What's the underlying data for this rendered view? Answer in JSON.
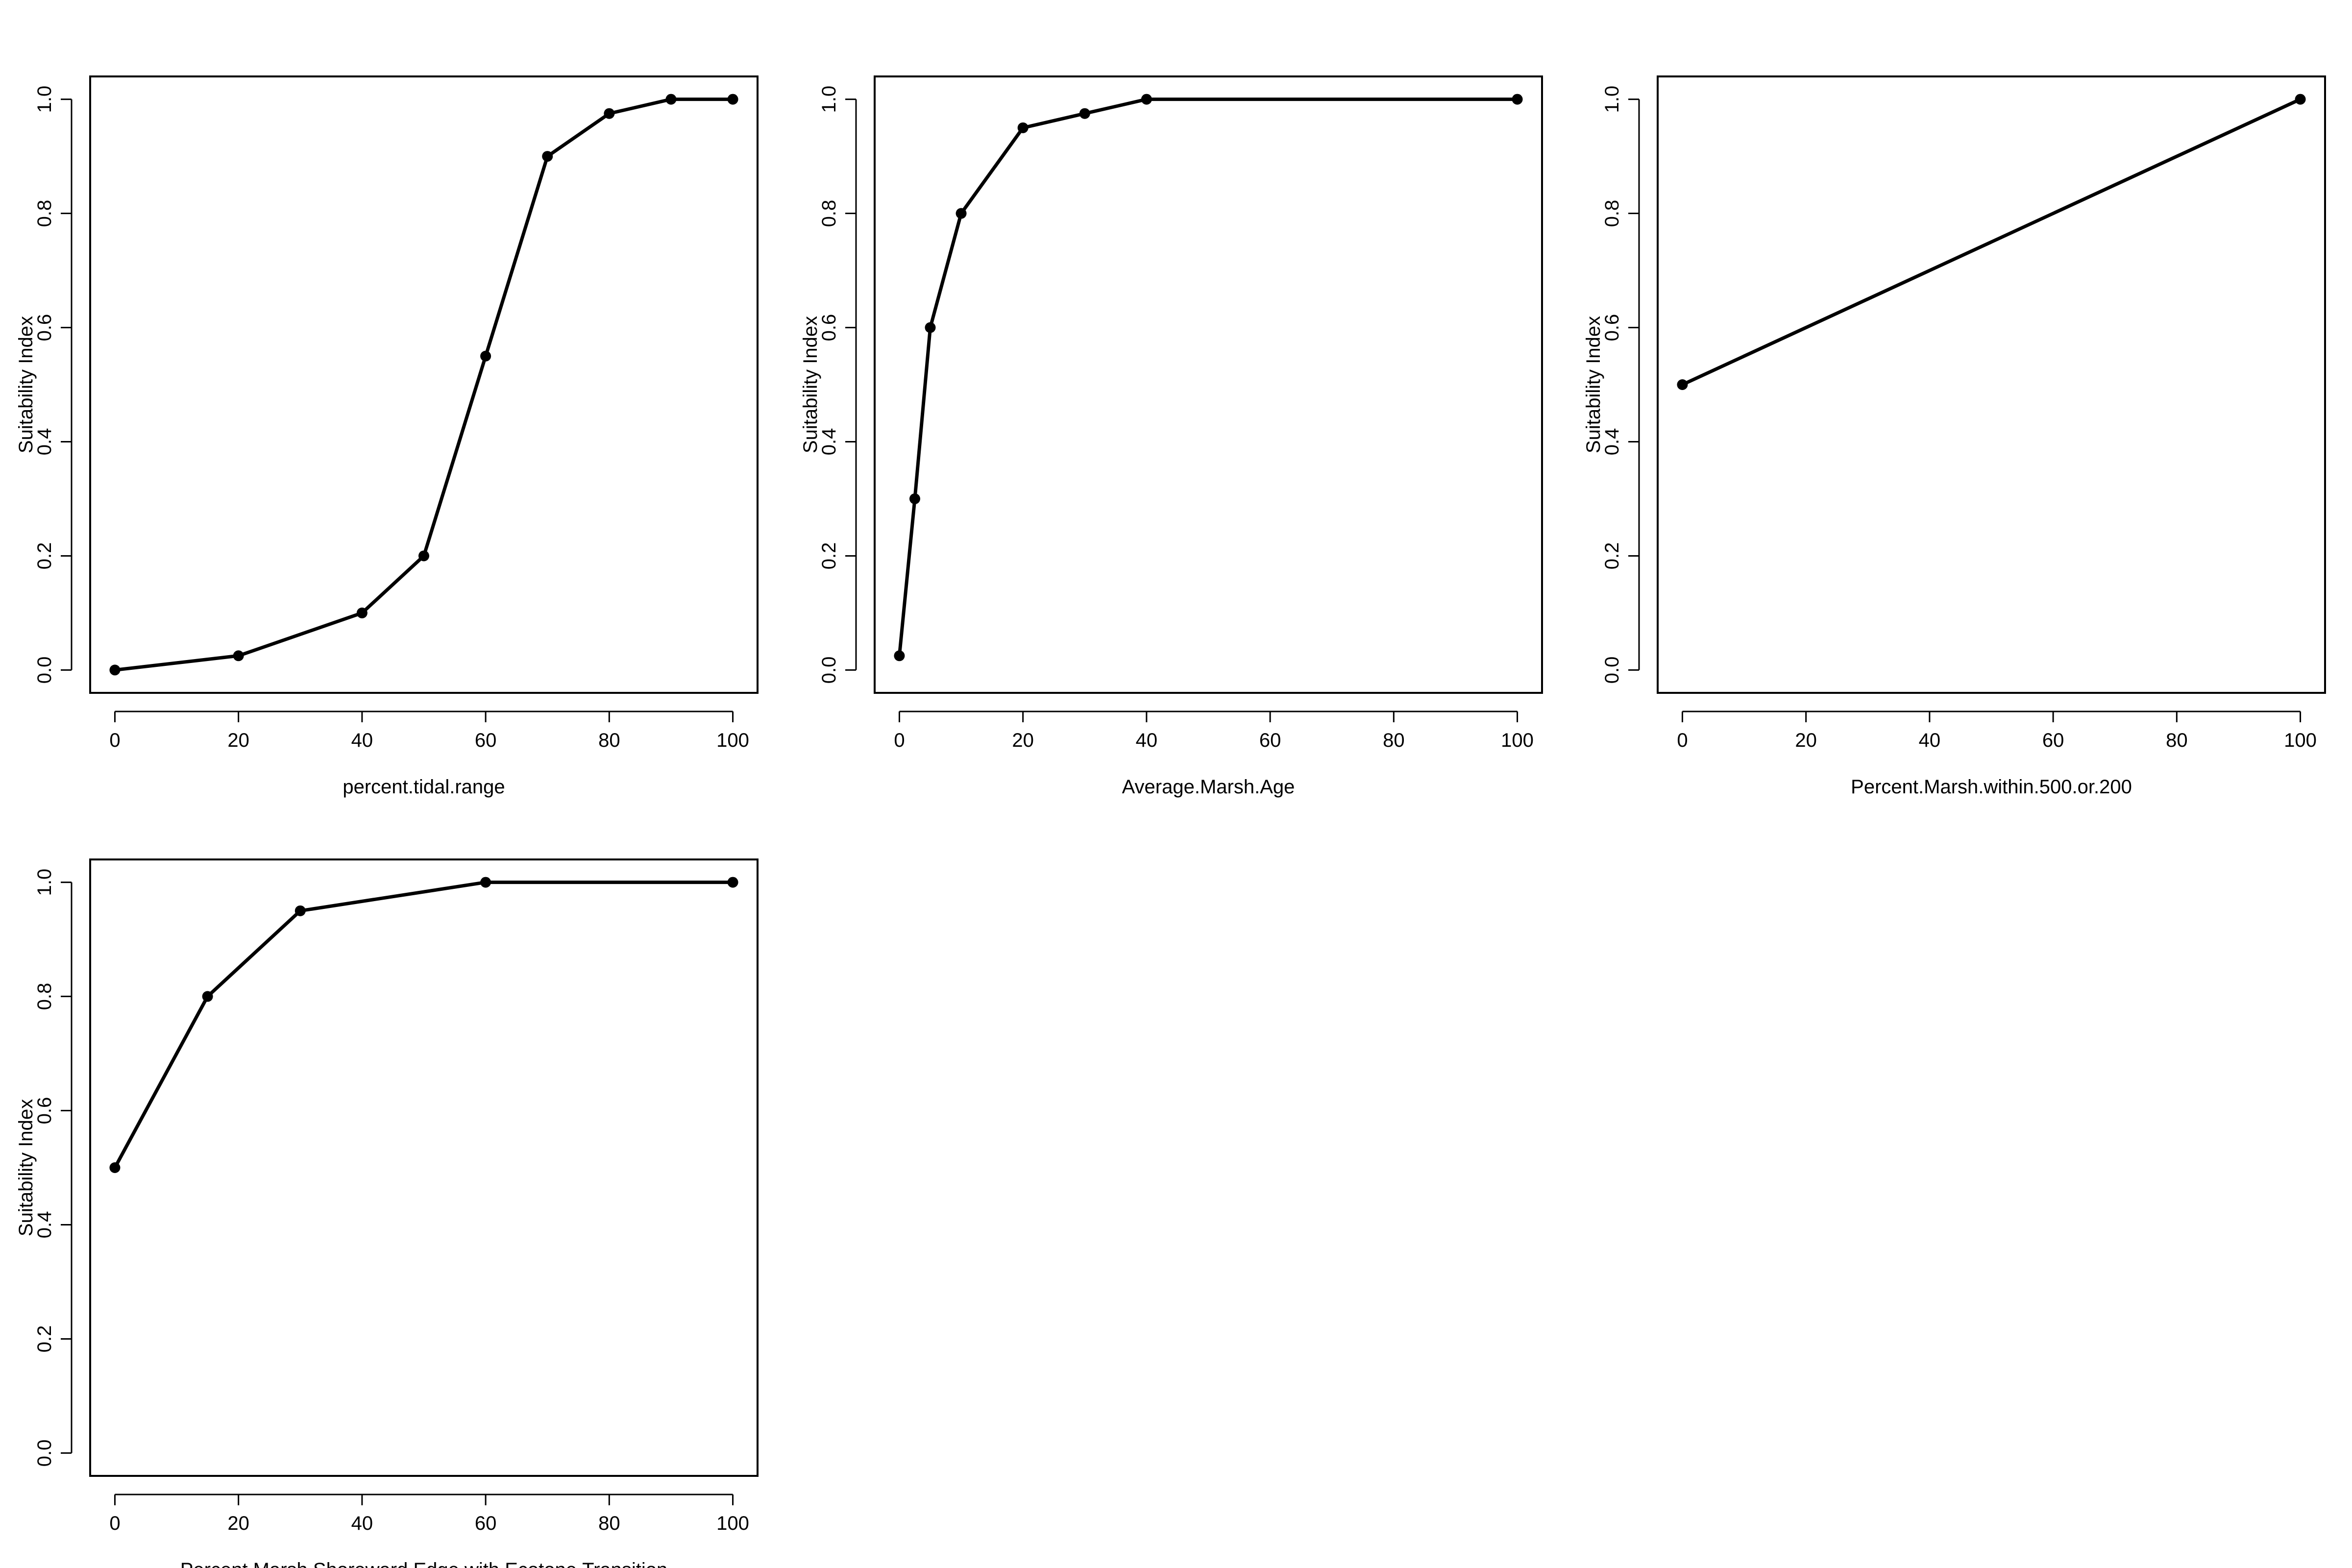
{
  "chart_data": [
    {
      "type": "line",
      "xlabel": "percent.tidal.range",
      "ylabel": "Suitability Index",
      "x": [
        0,
        20,
        40,
        50,
        60,
        70,
        80,
        90,
        100
      ],
      "values": [
        0,
        0.025,
        0.1,
        0.2,
        0.55,
        0.9,
        0.975,
        1,
        1
      ],
      "color": "#000000",
      "xlim": [
        -4,
        104
      ],
      "ylim": [
        -0.04,
        1.04
      ],
      "xticks": [
        0,
        20,
        40,
        60,
        80,
        100
      ],
      "yticks": [
        {
          "value": 0,
          "label": "0.0"
        },
        0.2,
        0.4,
        0.6,
        0.8,
        {
          "value": 1,
          "label": "1.0"
        }
      ]
    },
    {
      "type": "line",
      "xlabel": "Average.Marsh.Age",
      "ylabel": "Suitability Index",
      "x": [
        0,
        2.5,
        5,
        10,
        20,
        30,
        40,
        100
      ],
      "values": [
        0.025,
        0.3,
        0.6,
        0.8,
        0.95,
        0.975,
        1,
        1
      ],
      "color": "#000000",
      "xlim": [
        -4,
        104
      ],
      "ylim": [
        -0.04,
        1.04
      ],
      "xticks": [
        0,
        20,
        40,
        60,
        80,
        100
      ],
      "yticks": [
        {
          "value": 0,
          "label": "0.0"
        },
        0.2,
        0.4,
        0.6,
        0.8,
        {
          "value": 1,
          "label": "1.0"
        }
      ]
    },
    {
      "type": "line",
      "xlabel": "Percent.Marsh.within.500.or.200",
      "ylabel": "Suitability Index",
      "x": [
        0,
        100
      ],
      "values": [
        0.5,
        1
      ],
      "color": "#000000",
      "xlim": [
        -4,
        104
      ],
      "ylim": [
        -0.04,
        1.04
      ],
      "xticks": [
        0,
        20,
        40,
        60,
        80,
        100
      ],
      "yticks": [
        {
          "value": 0,
          "label": "0.0"
        },
        0.2,
        0.4,
        0.6,
        0.8,
        {
          "value": 1,
          "label": "1.0"
        }
      ]
    },
    {
      "type": "line",
      "xlabel": "Percent.Marsh.Shoreward.Edge.with.Ecotone.Transition",
      "ylabel": "Suitability Index",
      "x": [
        0,
        15,
        30,
        60,
        100
      ],
      "values": [
        0.5,
        0.8,
        0.95,
        1,
        1
      ],
      "color": "#000000",
      "xlim": [
        -4,
        104
      ],
      "ylim": [
        -0.04,
        1.04
      ],
      "xticks": [
        0,
        20,
        40,
        60,
        80,
        100
      ],
      "yticks": [
        {
          "value": 0,
          "label": "0.0"
        },
        0.2,
        0.4,
        0.6,
        0.8,
        {
          "value": 1,
          "label": "1.0"
        }
      ]
    }
  ]
}
